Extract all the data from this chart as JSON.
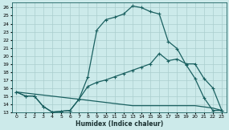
{
  "xlabel": "Humidex (Indice chaleur)",
  "bg_color": "#cceaea",
  "grid_color": "#aacece",
  "line_color": "#1a6060",
  "xlim": [
    -0.5,
    23.5
  ],
  "ylim": [
    13,
    26.6
  ],
  "yticks": [
    13,
    14,
    15,
    16,
    17,
    18,
    19,
    20,
    21,
    22,
    23,
    24,
    25,
    26
  ],
  "xticks": [
    0,
    1,
    2,
    3,
    4,
    5,
    6,
    7,
    8,
    9,
    10,
    11,
    12,
    13,
    14,
    15,
    16,
    17,
    18,
    19,
    20,
    21,
    22,
    23
  ],
  "series1_x": [
    0,
    1,
    2,
    3,
    4,
    5,
    6,
    7,
    8,
    9,
    10,
    11,
    12,
    13,
    14,
    15,
    16,
    17,
    18,
    19,
    20,
    21,
    22,
    23
  ],
  "series1_y": [
    15.5,
    15.0,
    15.0,
    13.7,
    13.0,
    13.1,
    13.2,
    14.6,
    17.4,
    23.2,
    24.5,
    24.8,
    25.2,
    26.2,
    26.0,
    25.5,
    25.2,
    21.8,
    20.9,
    18.9,
    17.2,
    14.8,
    13.2,
    13.2
  ],
  "series2_x": [
    0,
    1,
    2,
    3,
    4,
    5,
    6,
    7,
    8,
    9,
    10,
    11,
    12,
    13,
    14,
    15,
    16,
    17,
    18,
    19,
    20,
    21,
    22,
    23
  ],
  "series2_y": [
    15.5,
    15.0,
    15.0,
    13.7,
    13.0,
    13.1,
    13.2,
    14.6,
    16.2,
    16.7,
    17.0,
    17.4,
    17.8,
    18.2,
    18.6,
    19.0,
    20.3,
    19.4,
    19.6,
    19.0,
    19.0,
    17.2,
    16.0,
    13.2
  ],
  "series3_x": [
    0,
    7,
    13,
    20,
    22,
    23
  ],
  "series3_y": [
    15.5,
    14.6,
    13.8,
    13.8,
    13.5,
    13.2
  ]
}
